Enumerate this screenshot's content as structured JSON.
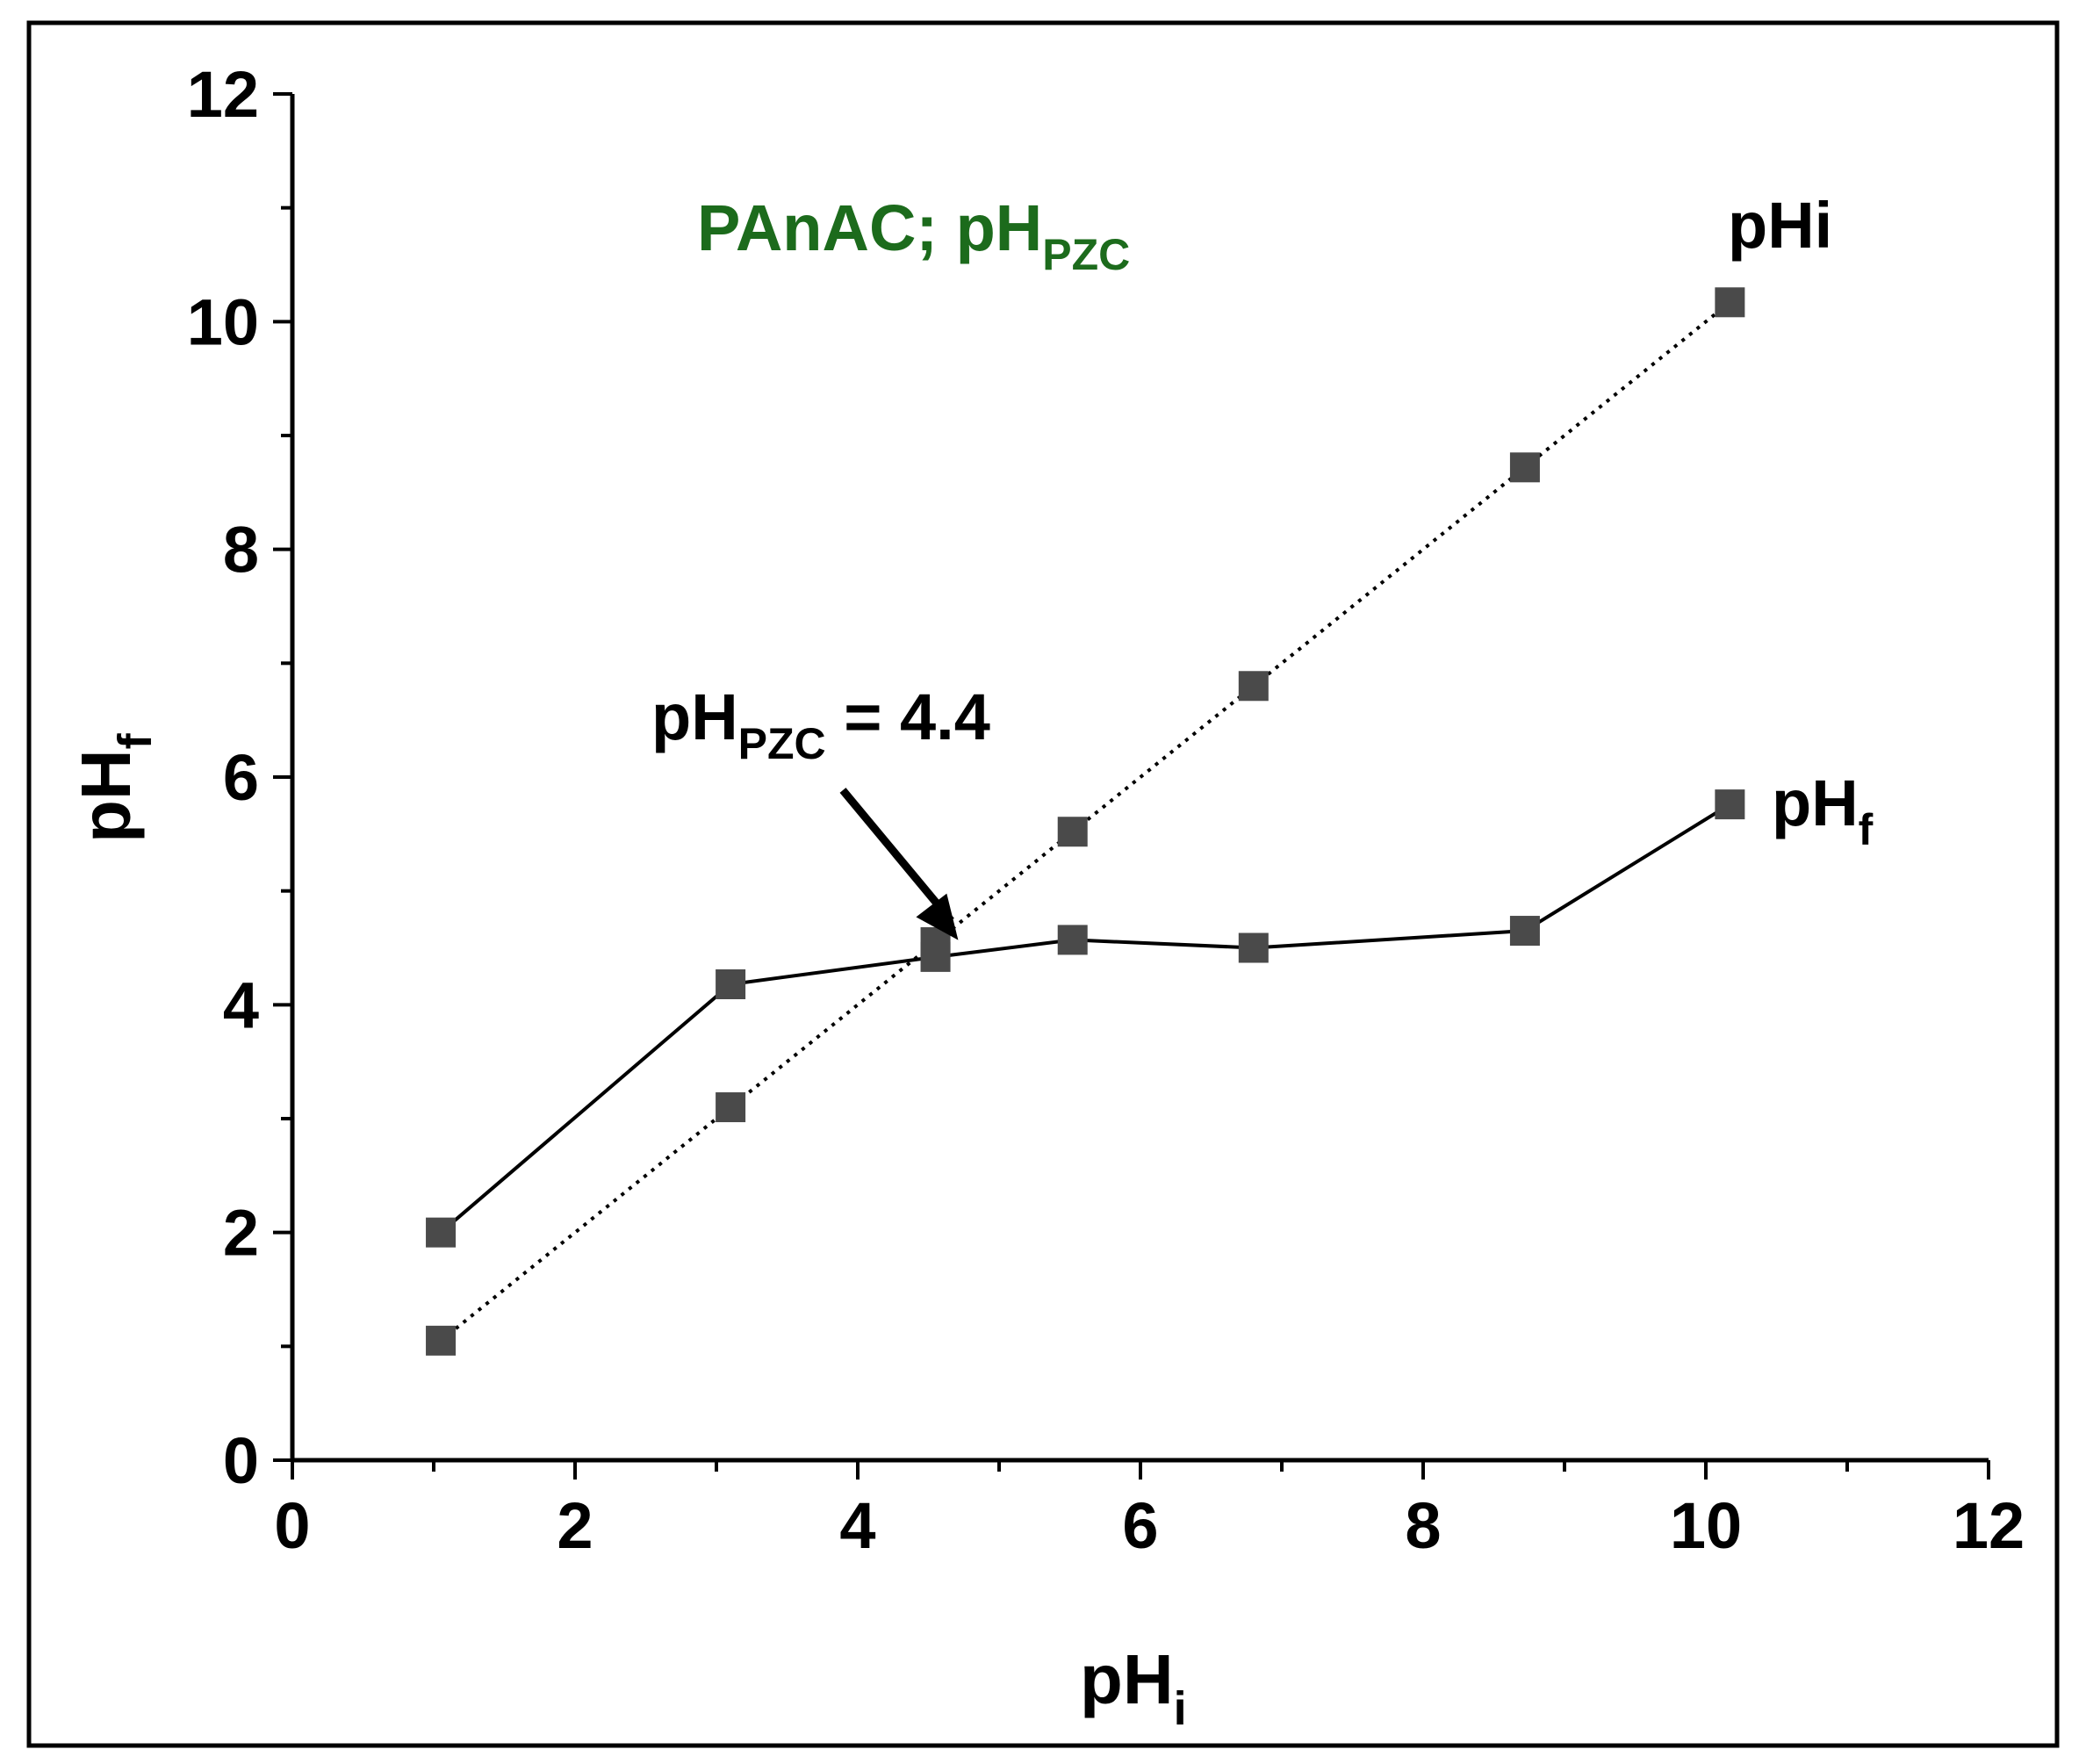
{
  "chart_data": {
    "type": "line",
    "title": "PAnAC; pH",
    "title_sub": "PZC",
    "title_color": "#1c6b1c",
    "xlabel": "pH",
    "xlabel_sub": "i",
    "ylabel": "pH",
    "ylabel_sub": "f",
    "xlim": [
      0,
      12
    ],
    "ylim": [
      0,
      12
    ],
    "xticks": [
      "0",
      "2",
      "4",
      "6",
      "8",
      "10",
      "12"
    ],
    "yticks": [
      "0",
      "2",
      "4",
      "6",
      "8",
      "10",
      "12"
    ],
    "series": [
      {
        "name": "pH",
        "name_sub": "f",
        "line": "solid",
        "marker": "square",
        "color": "#000000",
        "marker_color": "#4a4a4a",
        "x": [
          1.05,
          3.1,
          4.55,
          5.52,
          6.8,
          8.72,
          10.17
        ],
        "y": [
          2.0,
          4.18,
          4.42,
          4.57,
          4.5,
          4.65,
          5.76
        ]
      },
      {
        "name": "pHi",
        "name_sub": "",
        "line": "dotted",
        "marker": "square",
        "color": "#000000",
        "marker_color": "#4a4a4a",
        "x": [
          1.05,
          3.1,
          4.55,
          5.52,
          6.8,
          8.72,
          10.17
        ],
        "y": [
          1.05,
          3.1,
          4.55,
          5.52,
          6.8,
          8.72,
          10.17
        ]
      }
    ],
    "annotations": [
      {
        "text": "pH",
        "text_sub": "PZC",
        "text_tail": " = 4.4",
        "arrow_to": [
          4.4,
          4.8
        ],
        "arrow_from": [
          3.7,
          5.85
        ]
      }
    ]
  }
}
